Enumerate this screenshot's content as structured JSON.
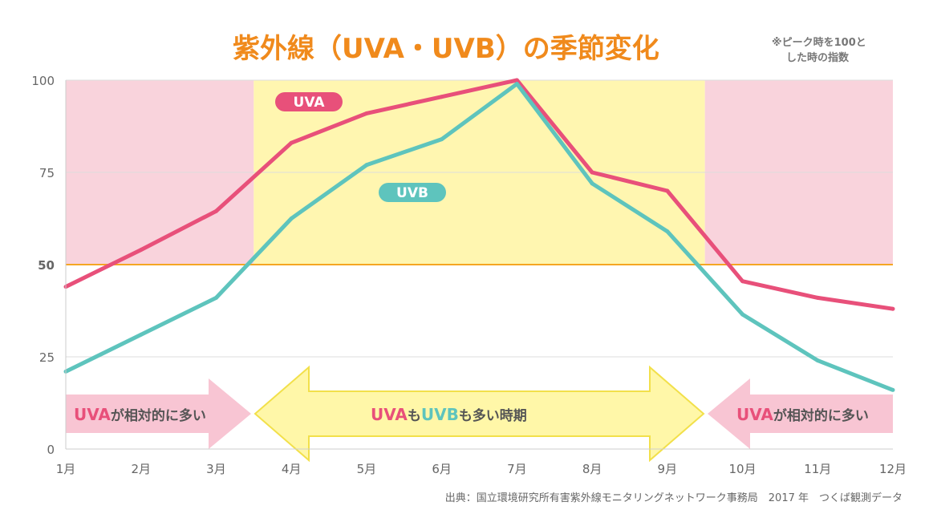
{
  "chart_data": {
    "type": "line",
    "title": "紫外線（UVA・UVB）の季節変化",
    "note": [
      "※ピーク時を100と",
      "した時の指数"
    ],
    "categories": [
      "1月",
      "2月",
      "3月",
      "4月",
      "5月",
      "6月",
      "7月",
      "8月",
      "9月",
      "10月",
      "11月",
      "12月"
    ],
    "ylim": [
      0,
      100
    ],
    "yticks": [
      "0",
      "25",
      "50",
      "75",
      "100"
    ],
    "grid": true,
    "series": [
      {
        "name": "UVA",
        "color": "#e8507a",
        "values": [
          44,
          54,
          64.5,
          83,
          91,
          95.5,
          100,
          75,
          70,
          45.5,
          41,
          38
        ]
      },
      {
        "name": "UVB",
        "color": "#5ec4bd",
        "values": [
          21,
          31,
          41,
          62.5,
          77,
          84,
          99,
          72,
          59,
          36.5,
          24,
          16
        ]
      }
    ],
    "threshold": {
      "value": 50,
      "color": "#f5a623"
    },
    "regions": [
      {
        "from": 1,
        "to": 3.5,
        "color": "#f9d3dc"
      },
      {
        "from": 3.5,
        "to": 9.5,
        "color": "#fff6b0"
      },
      {
        "from": 9.5,
        "to": 12,
        "color": "#f9d3dc"
      }
    ],
    "annotations": {
      "left": {
        "a": "UVA",
        "rest": "が相対的に多い"
      },
      "center": {
        "a": "UVA",
        "mo1": "も",
        "b": "UVB",
        "rest": "も多い時期"
      },
      "right": {
        "a": "UVA",
        "rest": "が相対的に多い"
      }
    },
    "source": "出典：国立環境研究所有害紫外線モニタリングネットワーク事務局　2017 年　つくば観測データ"
  }
}
